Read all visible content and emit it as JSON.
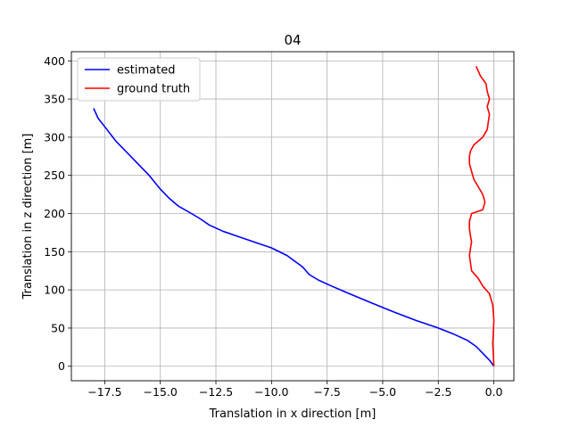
{
  "chart_data": {
    "type": "line",
    "title": "04",
    "xlabel": "Translation in x direction [m]",
    "ylabel": "Translation in z direction [m]",
    "xlim": [
      -19.0,
      0.9
    ],
    "ylim": [
      -19,
      412
    ],
    "xticks": [
      -17.5,
      -15.0,
      -12.5,
      -10.0,
      -7.5,
      -5.0,
      -2.5,
      0.0
    ],
    "xtick_labels": [
      "−17.5",
      "−15.0",
      "−12.5",
      "−10.0",
      "−7.5",
      "−5.0",
      "−2.5",
      "0.0"
    ],
    "yticks": [
      0,
      50,
      100,
      150,
      200,
      250,
      300,
      350,
      400
    ],
    "ytick_labels": [
      "0",
      "50",
      "100",
      "150",
      "200",
      "250",
      "300",
      "350",
      "400"
    ],
    "grid": true,
    "legend_position": "top-left",
    "series": [
      {
        "name": "estimated",
        "color": "#0000ff",
        "x": [
          0.0,
          -0.2,
          -0.5,
          -0.8,
          -1.2,
          -1.8,
          -2.5,
          -3.5,
          -4.5,
          -5.5,
          -6.5,
          -7.3,
          -7.9,
          -8.3,
          -8.6,
          -9.3,
          -10.0,
          -10.8,
          -11.5,
          -12.2,
          -12.8,
          -13.2,
          -13.6,
          -14.2,
          -14.6,
          -15.0,
          -15.5,
          -16.0,
          -16.5,
          -17.0,
          -17.4,
          -17.8,
          -18.0
        ],
        "y": [
          0,
          8,
          17,
          26,
          34,
          42,
          50,
          60,
          71,
          83,
          95,
          105,
          113,
          120,
          130,
          145,
          155,
          163,
          170,
          177,
          185,
          193,
          200,
          210,
          220,
          232,
          250,
          265,
          280,
          295,
          310,
          325,
          338
        ]
      },
      {
        "name": "ground truth",
        "color": "#ff0000",
        "x": [
          0.0,
          -0.05,
          0.0,
          -0.05,
          -0.2,
          -0.5,
          -0.7,
          -1.0,
          -1.05,
          -1.1,
          -1.05,
          -1.0,
          -1.05,
          -1.1,
          -1.1,
          -1.0,
          -0.5,
          -0.4,
          -0.5,
          -0.7,
          -0.9,
          -1.0,
          -1.1,
          -1.1,
          -1.05,
          -0.9,
          -0.5,
          -0.3,
          -0.25,
          -0.2,
          -0.3,
          -0.2,
          -0.3,
          -0.35,
          -0.6,
          -0.8
        ],
        "y": [
          0,
          30,
          60,
          80,
          95,
          105,
          115,
          125,
          135,
          145,
          155,
          163,
          170,
          180,
          190,
          200,
          205,
          215,
          225,
          235,
          245,
          255,
          265,
          275,
          282,
          290,
          300,
          310,
          320,
          330,
          340,
          350,
          360,
          370,
          380,
          393
        ]
      }
    ]
  }
}
